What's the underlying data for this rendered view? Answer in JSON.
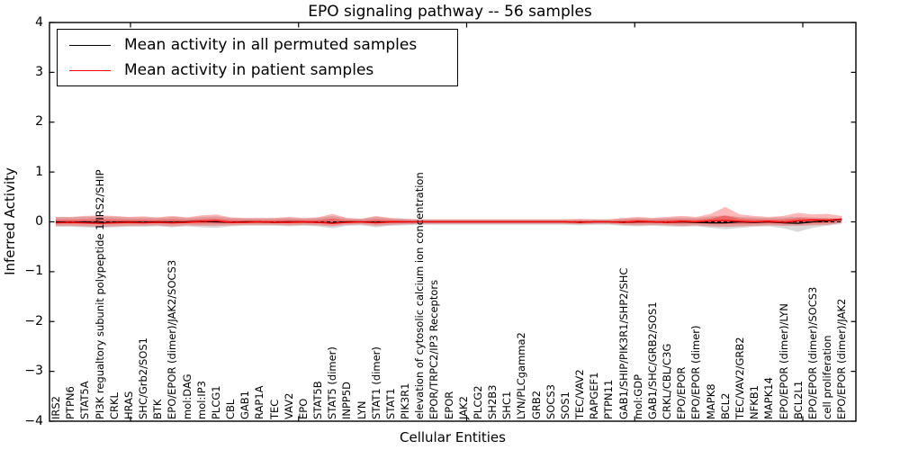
{
  "title": "EPO signaling pathway -- 56 samples",
  "legend": {
    "items": [
      {
        "label": "Mean activity in all permuted samples",
        "color": "#000000"
      },
      {
        "label": "Mean activity in patient samples",
        "color": "#ff0000"
      }
    ]
  },
  "chart_data": {
    "type": "line",
    "title": "EPO signaling pathway -- 56 samples",
    "xlabel": "Cellular Entities",
    "ylabel": "Inferred Activity",
    "ylim": [
      -4,
      4
    ],
    "yticks": [
      4,
      3,
      2,
      1,
      0,
      -1,
      -2,
      -3,
      -4
    ],
    "grid": false,
    "legend_position": "upper left",
    "zero_line": {
      "style": "dashed",
      "color": "#000000",
      "y": 0
    },
    "categories": [
      "IRS2",
      "PTPN6",
      "STAT5A",
      "PI3K regualtory subunit polypeptide 1/IRS2/SHIP",
      "CRKL",
      "HRAS",
      "SHC/Grb2/SOS1",
      "BTK",
      "EPO/EPOR (dimer)/JAK2/SOCS3",
      "mol:DAG",
      "mol:IP3",
      "PLCG1",
      "CBL",
      "GAB1",
      "RAP1A",
      "TEC",
      "VAV2",
      "EPO",
      "STAT5B",
      "STAT5 (dimer)",
      "INPP5D",
      "LYN",
      "STAT1 (dimer)",
      "STAT1",
      "PIK3R1",
      "elevation of cytosolic calcium ion concentration",
      "EPOR/TRPC2/IP3 Receptors",
      "EPOR",
      "JAK2",
      "PLCG2",
      "SH2B3",
      "SHC1",
      "LYN/PLCgamma2",
      "GRB2",
      "SOCS3",
      "SOS1",
      "TEC/VAV2",
      "RAPGEF1",
      "PTPN11",
      "GAB1/SHIP/PIK3R1/SHP2/SHC",
      "mol:GDP",
      "GAB1/SHC/GRB2/SOS1",
      "CRKL/CBL/C3G",
      "EPO/EPOR",
      "EPO/EPOR (dimer)",
      "MAPK8",
      "BCL2",
      "TEC/VAV2/GRB2",
      "NFKB1",
      "MAPK14",
      "EPO/EPOR (dimer)/LYN",
      "BCL2L1",
      "EPO/EPOR (dimer)/SOCS3",
      "cell proliferation",
      "EPO/EPOR (dimer)/JAK2"
    ],
    "series": [
      {
        "name": "Mean activity in all permuted samples",
        "color": "#000000",
        "values": [
          0.0,
          -0.01,
          0.0,
          -0.02,
          -0.01,
          0.0,
          -0.01,
          0.0,
          -0.01,
          0.0,
          0.01,
          0.0,
          -0.01,
          0.0,
          0.0,
          -0.01,
          0.0,
          0.0,
          -0.01,
          -0.02,
          0.0,
          0.0,
          -0.01,
          0.0,
          0.0,
          0.0,
          0.0,
          0.0,
          0.0,
          0.0,
          0.0,
          0.0,
          0.0,
          0.0,
          0.0,
          0.0,
          -0.01,
          0.0,
          0.0,
          -0.01,
          0.0,
          0.0,
          -0.01,
          0.0,
          -0.01,
          -0.02,
          -0.02,
          0.0,
          -0.01,
          0.0,
          -0.02,
          -0.03,
          0.0,
          0.02,
          0.05
        ]
      },
      {
        "name": "Mean activity in patient samples",
        "color": "#ff0000",
        "values": [
          -0.02,
          -0.01,
          -0.02,
          -0.03,
          -0.02,
          -0.01,
          -0.02,
          -0.01,
          -0.02,
          -0.01,
          0.01,
          0.02,
          -0.01,
          -0.01,
          0.0,
          -0.01,
          -0.01,
          0.0,
          -0.01,
          -0.03,
          -0.01,
          0.0,
          -0.02,
          0.0,
          0.0,
          0.0,
          0.0,
          0.0,
          0.0,
          0.0,
          0.0,
          0.0,
          0.0,
          0.0,
          0.0,
          0.0,
          -0.01,
          0.0,
          0.0,
          -0.01,
          0.01,
          0.0,
          -0.01,
          0.01,
          0.0,
          0.02,
          0.03,
          0.01,
          0.0,
          0.01,
          -0.01,
          0.02,
          0.04,
          0.03,
          0.06
        ]
      }
    ],
    "bands": [
      {
        "name": "permuted-samples-band",
        "color": "#aaaaaa",
        "opacity": 0.45,
        "upper": [
          0.09,
          0.09,
          0.1,
          0.11,
          0.1,
          0.09,
          0.09,
          0.08,
          0.1,
          0.08,
          0.1,
          0.11,
          0.08,
          0.07,
          0.07,
          0.07,
          0.08,
          0.07,
          0.08,
          0.12,
          0.07,
          0.06,
          0.1,
          0.07,
          0.06,
          0.05,
          0.05,
          0.05,
          0.05,
          0.05,
          0.05,
          0.05,
          0.05,
          0.05,
          0.05,
          0.05,
          0.05,
          0.05,
          0.05,
          0.06,
          0.08,
          0.07,
          0.08,
          0.09,
          0.08,
          0.11,
          0.13,
          0.1,
          0.09,
          0.08,
          0.09,
          0.1,
          0.09,
          0.08,
          0.06
        ],
        "lower": [
          -0.1,
          -0.1,
          -0.11,
          -0.12,
          -0.11,
          -0.1,
          -0.1,
          -0.09,
          -0.11,
          -0.09,
          -0.11,
          -0.12,
          -0.09,
          -0.08,
          -0.08,
          -0.08,
          -0.09,
          -0.08,
          -0.09,
          -0.13,
          -0.08,
          -0.07,
          -0.11,
          -0.08,
          -0.07,
          -0.06,
          -0.06,
          -0.06,
          -0.06,
          -0.06,
          -0.06,
          -0.06,
          -0.06,
          -0.06,
          -0.06,
          -0.06,
          -0.07,
          -0.06,
          -0.06,
          -0.08,
          -0.09,
          -0.08,
          -0.09,
          -0.1,
          -0.09,
          -0.12,
          -0.15,
          -0.12,
          -0.1,
          -0.09,
          -0.13,
          -0.2,
          -0.12,
          -0.08,
          -0.04
        ]
      },
      {
        "name": "patient-samples-band-outer",
        "color": "#ff0000",
        "opacity": 0.28,
        "upper": [
          0.1,
          0.1,
          0.12,
          0.13,
          0.12,
          0.1,
          0.11,
          0.09,
          0.12,
          0.09,
          0.13,
          0.15,
          0.09,
          0.08,
          0.08,
          0.08,
          0.1,
          0.08,
          0.09,
          0.16,
          0.08,
          0.06,
          0.12,
          0.08,
          0.06,
          0.05,
          0.05,
          0.05,
          0.05,
          0.05,
          0.05,
          0.05,
          0.05,
          0.05,
          0.05,
          0.05,
          0.06,
          0.05,
          0.05,
          0.08,
          0.1,
          0.08,
          0.1,
          0.12,
          0.1,
          0.16,
          0.3,
          0.15,
          0.12,
          0.1,
          0.12,
          0.18,
          0.15,
          0.16,
          0.12
        ],
        "lower": [
          -0.08,
          -0.08,
          -0.09,
          -0.1,
          -0.09,
          -0.08,
          -0.08,
          -0.07,
          -0.09,
          -0.07,
          -0.08,
          -0.08,
          -0.07,
          -0.06,
          -0.06,
          -0.06,
          -0.07,
          -0.06,
          -0.07,
          -0.09,
          -0.06,
          -0.05,
          -0.08,
          -0.06,
          -0.05,
          -0.04,
          -0.04,
          -0.04,
          -0.04,
          -0.04,
          -0.04,
          -0.04,
          -0.04,
          -0.04,
          -0.04,
          -0.04,
          -0.05,
          -0.04,
          -0.04,
          -0.06,
          -0.07,
          -0.06,
          -0.07,
          -0.08,
          -0.07,
          -0.09,
          -0.1,
          -0.09,
          -0.08,
          -0.07,
          -0.08,
          -0.08,
          -0.07,
          -0.06,
          -0.02
        ]
      },
      {
        "name": "patient-samples-band-inner",
        "color": "#ff0000",
        "opacity": 0.35,
        "scale_of_outer": 0.42
      }
    ]
  }
}
